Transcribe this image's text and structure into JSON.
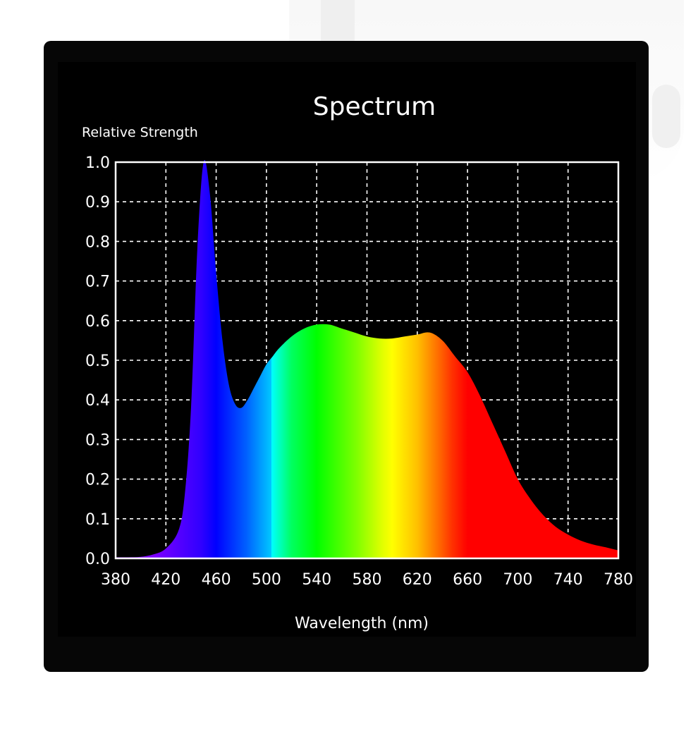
{
  "chart_data": {
    "type": "area",
    "title": "Spectrum",
    "xlabel": "Wavelength (nm)",
    "ylabel": "Relative Strength",
    "xlim": [
      380,
      780
    ],
    "ylim": [
      0,
      1.0
    ],
    "x_ticks": [
      380,
      420,
      460,
      500,
      540,
      580,
      620,
      660,
      700,
      740,
      780
    ],
    "y_ticks": [
      "0.0",
      "0.1",
      "0.2",
      "0.3",
      "0.4",
      "0.5",
      "0.6",
      "0.7",
      "0.8",
      "0.9",
      "1.0"
    ],
    "grid": true,
    "fill": "wavelength-colored spectrum gradient",
    "series": [
      {
        "x": [
          380,
          390,
          400,
          410,
          420,
          430,
          435,
          440,
          445,
          450,
          455,
          460,
          465,
          470,
          475,
          480,
          485,
          490,
          495,
          500,
          505,
          510,
          520,
          530,
          540,
          550,
          560,
          570,
          580,
          590,
          600,
          610,
          620,
          630,
          640,
          650,
          660,
          670,
          680,
          690,
          700,
          710,
          720,
          730,
          740,
          750,
          760,
          770,
          780
        ],
        "y": [
          0.003,
          0.003,
          0.004,
          0.01,
          0.025,
          0.07,
          0.16,
          0.38,
          0.78,
          1.0,
          0.92,
          0.72,
          0.55,
          0.44,
          0.39,
          0.38,
          0.4,
          0.43,
          0.46,
          0.49,
          0.51,
          0.53,
          0.56,
          0.58,
          0.59,
          0.59,
          0.58,
          0.57,
          0.56,
          0.555,
          0.555,
          0.56,
          0.565,
          0.57,
          0.55,
          0.51,
          0.47,
          0.41,
          0.34,
          0.27,
          0.2,
          0.15,
          0.11,
          0.08,
          0.06,
          0.045,
          0.035,
          0.028,
          0.02
        ]
      }
    ]
  }
}
